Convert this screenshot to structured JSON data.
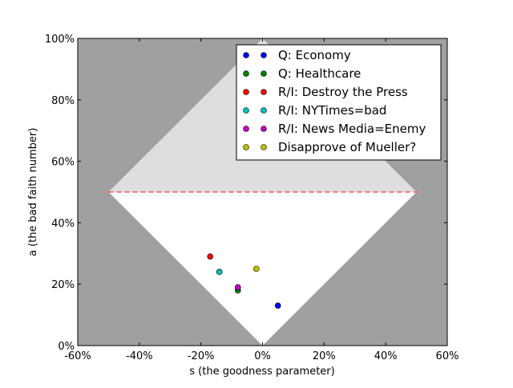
{
  "chart_data": {
    "type": "scatter",
    "xlabel": "s (the goodness parameter)",
    "ylabel": "a (the bad faith number)",
    "xlim": [
      -60,
      60
    ],
    "ylim": [
      0,
      100
    ],
    "x_ticks": [
      "-60%",
      "-40%",
      "-20%",
      "0%",
      "20%",
      "40%",
      "60%"
    ],
    "y_ticks": [
      "0%",
      "20%",
      "40%",
      "60%",
      "80%",
      "100%"
    ],
    "grid": false,
    "legend_position": "top-right",
    "colors": {
      "outside_region": "#a0a0a0",
      "upper_region": "#dedede",
      "lower_region": "#ffffff",
      "threshold_line": "#ff0000"
    },
    "regions": {
      "diamond": [
        [
          -50,
          50
        ],
        [
          0,
          100
        ],
        [
          50,
          50
        ],
        [
          0,
          0
        ]
      ],
      "threshold_y": 50
    },
    "series": [
      {
        "name": "Q: Economy",
        "color": "#0000ff",
        "x": 5,
        "y": 13
      },
      {
        "name": "Q: Healthcare",
        "color": "#008000",
        "x": -8,
        "y": 18
      },
      {
        "name": "R/I: Destroy the Press",
        "color": "#ff0000",
        "x": -17,
        "y": 29
      },
      {
        "name": "R/I: NYTimes=bad",
        "color": "#00bfbf",
        "x": -14,
        "y": 24
      },
      {
        "name": "R/I: News Media=Enemy",
        "color": "#bf00bf",
        "x": -8,
        "y": 19
      },
      {
        "name": "Disapprove of Mueller?",
        "color": "#bfbf00",
        "x": -2,
        "y": 25
      }
    ]
  }
}
